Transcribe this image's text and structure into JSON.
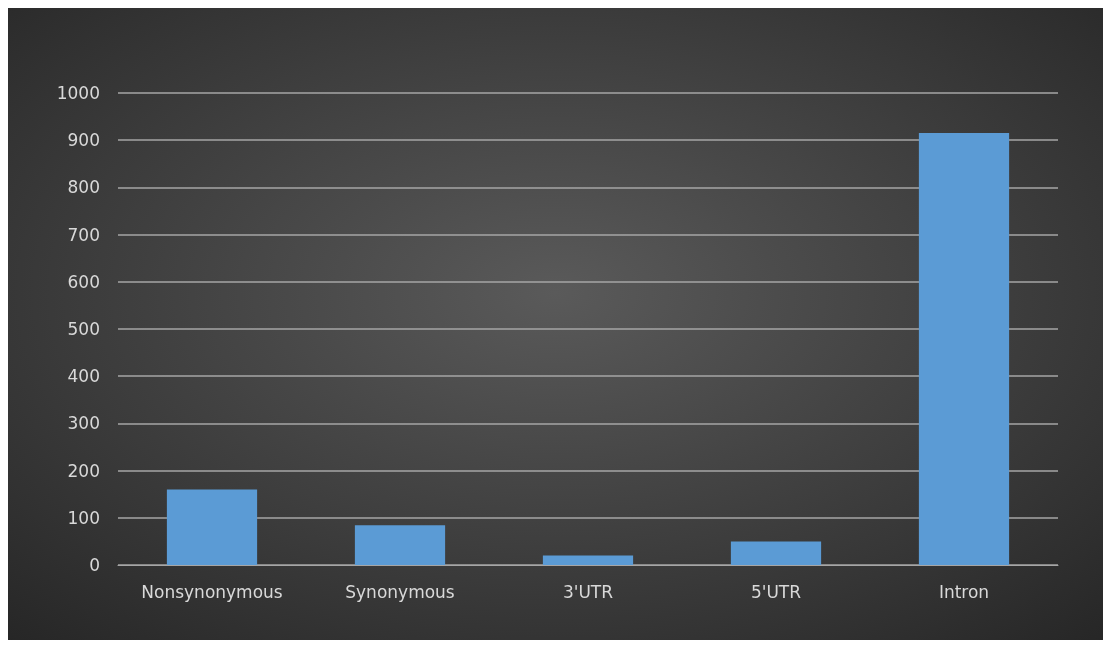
{
  "chart_data": {
    "type": "bar",
    "categories": [
      "Nonsynonymous",
      "Synonymous",
      "3'UTR",
      "5'UTR",
      "Intron"
    ],
    "values": [
      160,
      84,
      20,
      50,
      915
    ],
    "color": "#5b9bd5",
    "ylim": [
      0,
      1000
    ],
    "yticks": [
      0,
      100,
      200,
      300,
      400,
      500,
      600,
      700,
      800,
      900,
      1000
    ],
    "grid": "y"
  }
}
